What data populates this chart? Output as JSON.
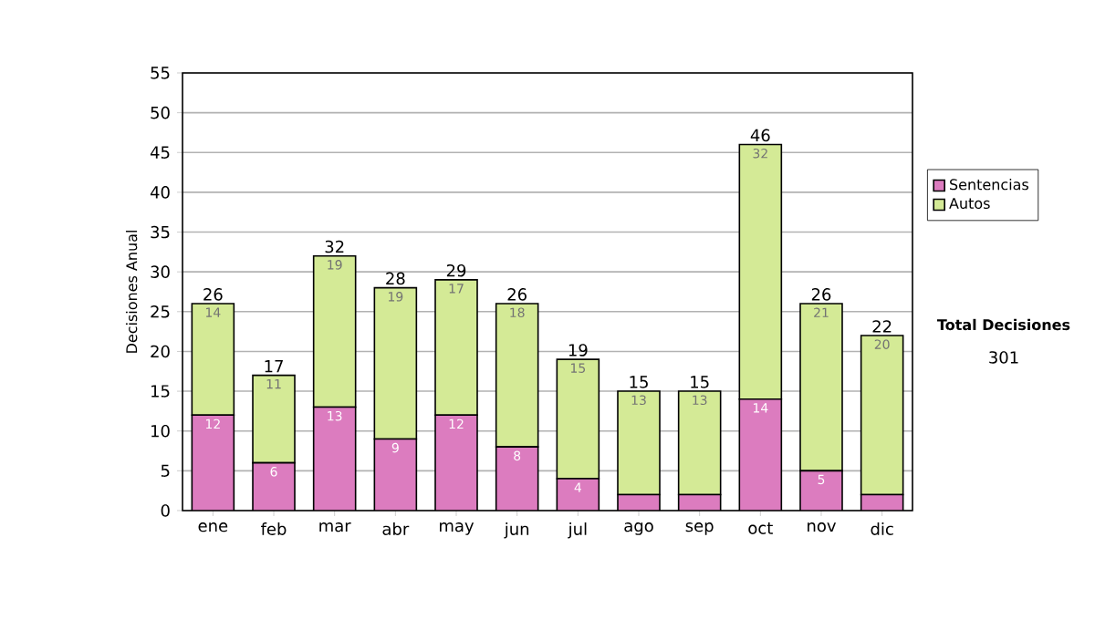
{
  "chart_data": {
    "type": "bar",
    "stacked": true,
    "ylabel": "Decisiones Anual",
    "categories": [
      "ene",
      "feb",
      "mar",
      "abr",
      "may",
      "jun",
      "jul",
      "ago",
      "sep",
      "oct",
      "nov",
      "dic"
    ],
    "series": [
      {
        "name": "Sentencias",
        "color": "#dc7cbf",
        "values": [
          12,
          6,
          13,
          9,
          12,
          8,
          4,
          2,
          2,
          14,
          5,
          2
        ],
        "value_labels": [
          "12",
          "6",
          "13",
          "9",
          "12",
          "8",
          "4",
          null,
          null,
          "14",
          "5",
          null
        ]
      },
      {
        "name": "Autos",
        "color": "#d4ea96",
        "values": [
          14,
          11,
          19,
          19,
          17,
          18,
          15,
          13,
          13,
          32,
          21,
          20
        ],
        "value_labels": [
          "14",
          "11",
          "19",
          "19",
          "17",
          "18",
          "15",
          "13",
          "13",
          "32",
          "21",
          "20"
        ]
      }
    ],
    "totals": [
      "26",
      "17",
      "32",
      "28",
      "29",
      "26",
      "19",
      "15",
      "15",
      "46",
      "26",
      "22"
    ],
    "ylim": [
      0,
      55
    ],
    "yticks": [
      0,
      5,
      10,
      15,
      20,
      25,
      30,
      35,
      40,
      45,
      50,
      55
    ],
    "grid": "y",
    "legend": "right",
    "annotations": [
      "Total Decisiones",
      "301"
    ]
  }
}
